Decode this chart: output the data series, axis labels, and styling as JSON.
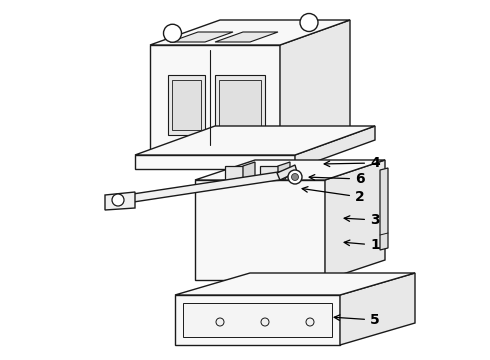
{
  "background_color": "#ffffff",
  "line_color": "#1a1a1a",
  "line_width": 1.0,
  "label_color": "#000000",
  "label_fontsize": 10,
  "label_fontweight": "bold",
  "fig_width": 4.9,
  "fig_height": 3.6,
  "dpi": 100
}
